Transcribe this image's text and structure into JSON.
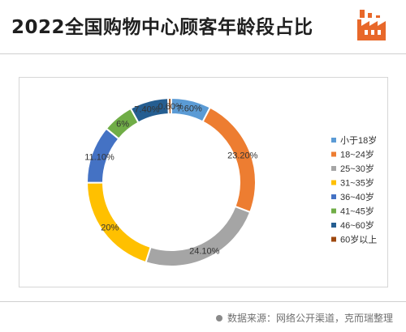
{
  "header": {
    "title": "2022全国购物中心顾客年龄段占比"
  },
  "footer": {
    "source": "数据来源：网络公开渠道，克而瑞整理"
  },
  "colors": {
    "title": "#1f1f1f",
    "logo": "#e8682a"
  },
  "icons": {
    "logo": "factory-icon",
    "source_bullet": "dot-icon"
  },
  "chart_data": {
    "type": "pie",
    "variant": "donut",
    "title": "",
    "legend_position": "right",
    "slices": [
      {
        "label": "小于18岁",
        "value": 7.6,
        "display": "7.60%",
        "color": "#5b9bd5"
      },
      {
        "label": "18~24岁",
        "value": 23.2,
        "display": "23.20%",
        "color": "#ed7d31"
      },
      {
        "label": "25~30岁",
        "value": 24.1,
        "display": "24.10%",
        "color": "#a5a5a5"
      },
      {
        "label": "31~35岁",
        "value": 20,
        "display": "20%",
        "color": "#ffc000"
      },
      {
        "label": "36~40岁",
        "value": 11.1,
        "display": "11.10%",
        "color": "#4472c4"
      },
      {
        "label": "41~45岁",
        "value": 6,
        "display": "6%",
        "color": "#70ad47"
      },
      {
        "label": "46~60岁",
        "value": 7.4,
        "display": "7.40%",
        "color": "#255e91"
      },
      {
        "label": "60岁以上",
        "value": 0.6,
        "display": "0.60%",
        "color": "#9e480e"
      }
    ]
  }
}
